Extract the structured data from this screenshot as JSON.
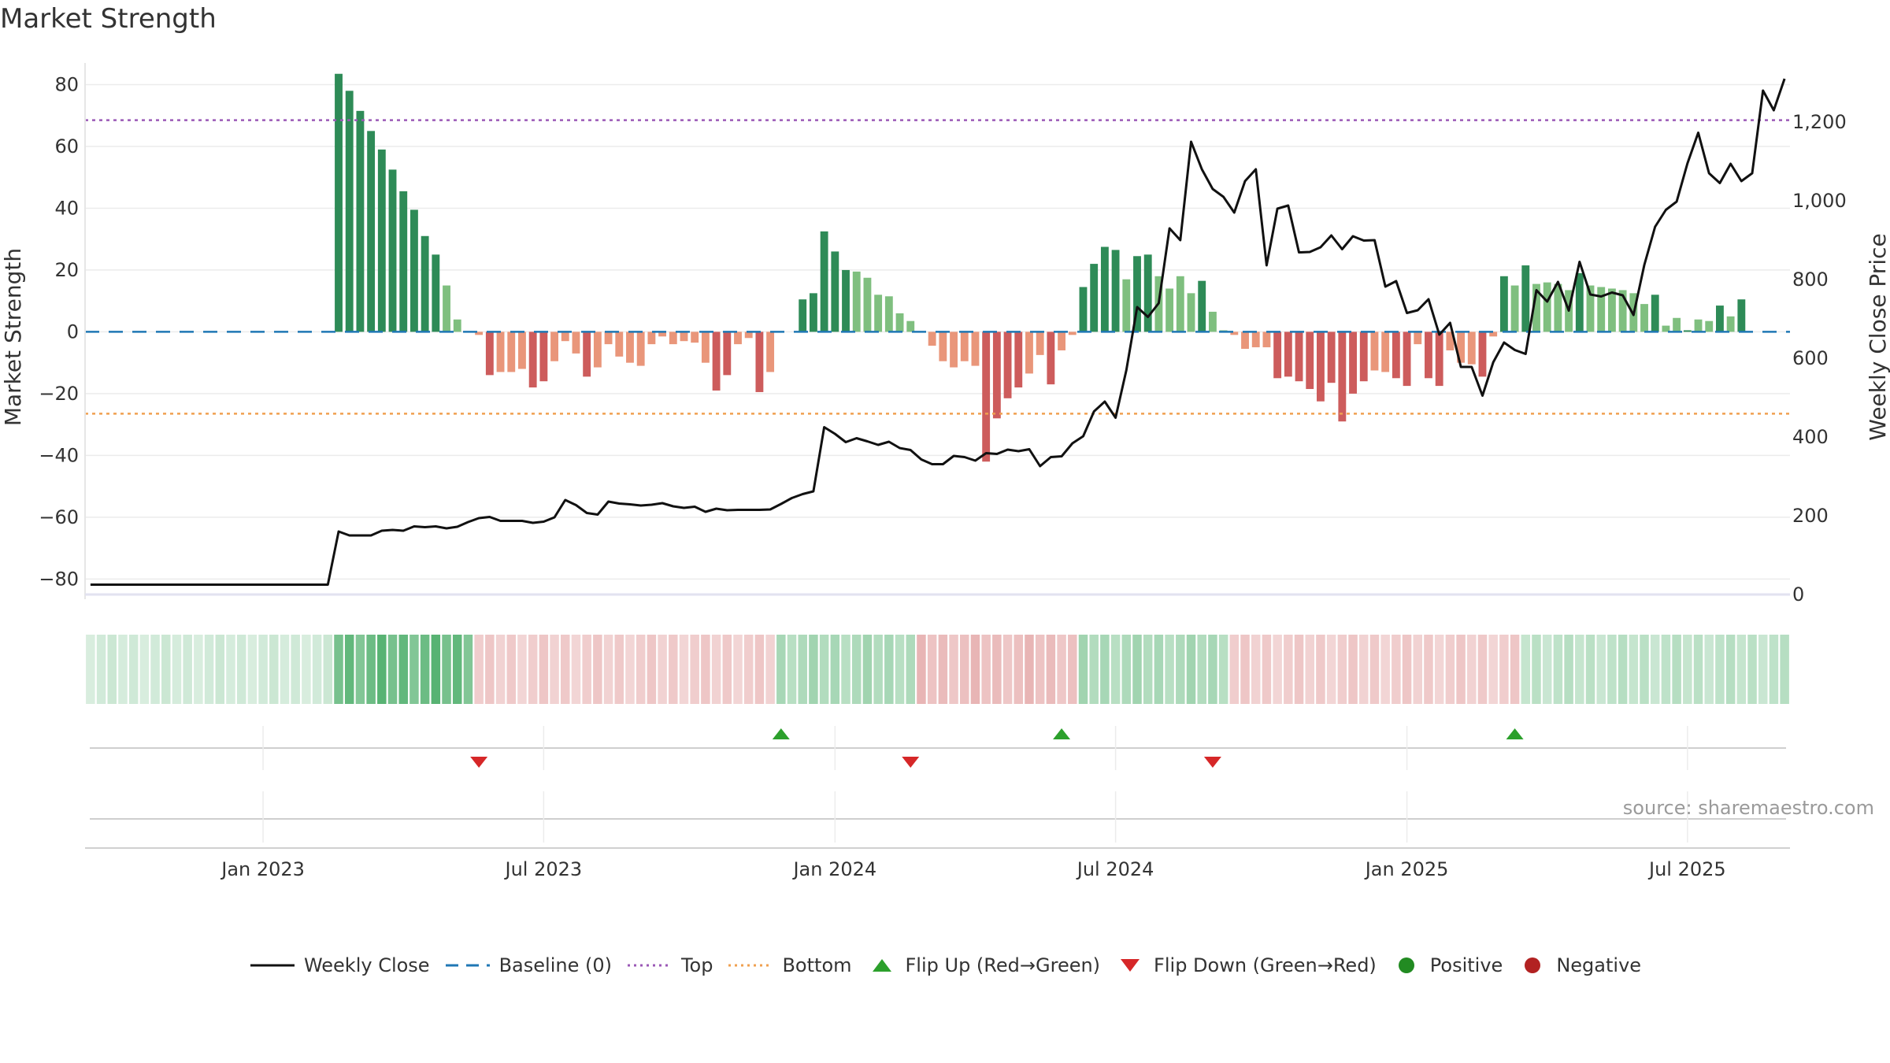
{
  "title": "Market Strength",
  "source": "source: sharemaestro.com",
  "colors": {
    "pos_strong": "#2e8b57",
    "pos_light": "#7fbf7f",
    "neg_strong": "#cd5c5c",
    "neg_light": "#e9967a",
    "line": "#111111",
    "baseline": "#1f77b4",
    "top": "#9b59b6",
    "bottom": "#f0a050",
    "flip_up": "#2ca02c",
    "flip_down": "#d62728",
    "positive": "#228b22",
    "negative": "#b22222"
  },
  "chart_data": {
    "type": "bar",
    "title": "Market Strength",
    "ylabel": "Market Strength",
    "y2label": "Weekly Close Price",
    "ylim": [
      -85,
      87
    ],
    "y_ticks": [
      80,
      60,
      40,
      20,
      0,
      -20,
      -40,
      -60,
      -80
    ],
    "y_tick_labels": [
      "80",
      "60",
      "40",
      "20",
      "0",
      "−20",
      "−40",
      "−60",
      "−80"
    ],
    "y2lim": [
      0,
      1350
    ],
    "y2_ticks": [
      1200,
      1000,
      800,
      600,
      400,
      200,
      0
    ],
    "y2_tick_labels": [
      "1,200",
      "1,000",
      "800",
      "600",
      "400",
      "200",
      "0"
    ],
    "x_ticks": [
      "Jan 2023",
      "Jul 2023",
      "Jan 2024",
      "Jul 2024",
      "Jan 2025",
      "Jul 2025"
    ],
    "x_tick_weeks": [
      16,
      42,
      69,
      95,
      122,
      148
    ],
    "n_weeks": 158,
    "top_line": 68.5,
    "bottom_line": -26.5,
    "bars": [
      {
        "week": 23,
        "value": 83.5
      },
      {
        "week": 24,
        "value": 78
      },
      {
        "week": 25,
        "value": 71.5
      },
      {
        "week": 26,
        "value": 65
      },
      {
        "week": 27,
        "value": 59
      },
      {
        "week": 28,
        "value": 52.5
      },
      {
        "week": 29,
        "value": 45.5
      },
      {
        "week": 30,
        "value": 39.5
      },
      {
        "week": 31,
        "value": 31
      },
      {
        "week": 32,
        "value": 25
      },
      {
        "week": 33,
        "value": 15
      },
      {
        "week": 34,
        "value": 4
      },
      {
        "week": 36,
        "value": -1
      },
      {
        "week": 37,
        "value": -14
      },
      {
        "week": 38,
        "value": -13
      },
      {
        "week": 39,
        "value": -13
      },
      {
        "week": 40,
        "value": -12
      },
      {
        "week": 41,
        "value": -18
      },
      {
        "week": 42,
        "value": -16
      },
      {
        "week": 43,
        "value": -9.5
      },
      {
        "week": 44,
        "value": -3
      },
      {
        "week": 45,
        "value": -7
      },
      {
        "week": 46,
        "value": -14.5
      },
      {
        "week": 47,
        "value": -11.5
      },
      {
        "week": 48,
        "value": -4
      },
      {
        "week": 49,
        "value": -8
      },
      {
        "week": 50,
        "value": -10
      },
      {
        "week": 51,
        "value": -11
      },
      {
        "week": 52,
        "value": -4
      },
      {
        "week": 53,
        "value": -1.5
      },
      {
        "week": 54,
        "value": -4
      },
      {
        "week": 55,
        "value": -3
      },
      {
        "week": 56,
        "value": -3.5
      },
      {
        "week": 57,
        "value": -10
      },
      {
        "week": 58,
        "value": -19
      },
      {
        "week": 59,
        "value": -14
      },
      {
        "week": 60,
        "value": -4
      },
      {
        "week": 61,
        "value": -2
      },
      {
        "week": 62,
        "value": -19.5
      },
      {
        "week": 63,
        "value": -13
      },
      {
        "week": 66,
        "value": 10.5
      },
      {
        "week": 67,
        "value": 12.5
      },
      {
        "week": 68,
        "value": 32.5
      },
      {
        "week": 69,
        "value": 26
      },
      {
        "week": 70,
        "value": 20
      },
      {
        "week": 71,
        "value": 19.5
      },
      {
        "week": 72,
        "value": 17.5
      },
      {
        "week": 73,
        "value": 12
      },
      {
        "week": 74,
        "value": 11.5
      },
      {
        "week": 75,
        "value": 6
      },
      {
        "week": 76,
        "value": 3.5
      },
      {
        "week": 78,
        "value": -4.5
      },
      {
        "week": 79,
        "value": -9.5
      },
      {
        "week": 80,
        "value": -11.5
      },
      {
        "week": 81,
        "value": -9.5
      },
      {
        "week": 82,
        "value": -11
      },
      {
        "week": 83,
        "value": -42
      },
      {
        "week": 84,
        "value": -28
      },
      {
        "week": 85,
        "value": -21.5
      },
      {
        "week": 86,
        "value": -18
      },
      {
        "week": 87,
        "value": -13.5
      },
      {
        "week": 88,
        "value": -7.5
      },
      {
        "week": 89,
        "value": -17
      },
      {
        "week": 90,
        "value": -6
      },
      {
        "week": 91,
        "value": -1
      },
      {
        "week": 92,
        "value": 14.5
      },
      {
        "week": 93,
        "value": 22
      },
      {
        "week": 94,
        "value": 27.5
      },
      {
        "week": 95,
        "value": 26.5
      },
      {
        "week": 96,
        "value": 17
      },
      {
        "week": 97,
        "value": 24.5
      },
      {
        "week": 98,
        "value": 25
      },
      {
        "week": 99,
        "value": 18
      },
      {
        "week": 100,
        "value": 14
      },
      {
        "week": 101,
        "value": 18
      },
      {
        "week": 102,
        "value": 12.5
      },
      {
        "week": 103,
        "value": 16.5
      },
      {
        "week": 104,
        "value": 6.5
      },
      {
        "week": 105,
        "value": 0.5
      },
      {
        "week": 106,
        "value": -1
      },
      {
        "week": 107,
        "value": -5.5
      },
      {
        "week": 108,
        "value": -5
      },
      {
        "week": 109,
        "value": -5
      },
      {
        "week": 110,
        "value": -15
      },
      {
        "week": 111,
        "value": -14.5
      },
      {
        "week": 112,
        "value": -16
      },
      {
        "week": 113,
        "value": -18.5
      },
      {
        "week": 114,
        "value": -22.5
      },
      {
        "week": 115,
        "value": -16.5
      },
      {
        "week": 116,
        "value": -29
      },
      {
        "week": 117,
        "value": -20
      },
      {
        "week": 118,
        "value": -16
      },
      {
        "week": 119,
        "value": -12.5
      },
      {
        "week": 120,
        "value": -13
      },
      {
        "week": 121,
        "value": -15
      },
      {
        "week": 122,
        "value": -17.5
      },
      {
        "week": 123,
        "value": -4
      },
      {
        "week": 124,
        "value": -15
      },
      {
        "week": 125,
        "value": -17.5
      },
      {
        "week": 126,
        "value": -6
      },
      {
        "week": 127,
        "value": -10
      },
      {
        "week": 128,
        "value": -10.5
      },
      {
        "week": 129,
        "value": -14.5
      },
      {
        "week": 130,
        "value": -1.5
      },
      {
        "week": 131,
        "value": 18
      },
      {
        "week": 132,
        "value": 15
      },
      {
        "week": 133,
        "value": 21.5
      },
      {
        "week": 134,
        "value": 15.5
      },
      {
        "week": 135,
        "value": 16
      },
      {
        "week": 136,
        "value": 15.5
      },
      {
        "week": 137,
        "value": 13.5
      },
      {
        "week": 138,
        "value": 19
      },
      {
        "week": 139,
        "value": 15
      },
      {
        "week": 140,
        "value": 14.5
      },
      {
        "week": 141,
        "value": 14
      },
      {
        "week": 142,
        "value": 13.5
      },
      {
        "week": 143,
        "value": 12.5
      },
      {
        "week": 144,
        "value": 9
      },
      {
        "week": 145,
        "value": 12
      },
      {
        "week": 146,
        "value": 2
      },
      {
        "week": 147,
        "value": 4.5
      },
      {
        "week": 148,
        "value": 0.5
      },
      {
        "week": 149,
        "value": 4
      },
      {
        "week": 150,
        "value": 3.5
      },
      {
        "week": 151,
        "value": 8.5
      },
      {
        "week": 152,
        "value": 5
      },
      {
        "week": 153,
        "value": 10.5
      }
    ],
    "close_series": [
      {
        "week": 0,
        "close": 25
      },
      {
        "week": 22,
        "close": 25
      },
      {
        "week": 23,
        "close": 160
      },
      {
        "week": 24,
        "close": 150
      },
      {
        "week": 25,
        "close": 150
      },
      {
        "week": 26,
        "close": 150
      },
      {
        "week": 27,
        "close": 162
      },
      {
        "week": 28,
        "close": 164
      },
      {
        "week": 29,
        "close": 162
      },
      {
        "week": 30,
        "close": 173
      },
      {
        "week": 31,
        "close": 171
      },
      {
        "week": 32,
        "close": 173
      },
      {
        "week": 33,
        "close": 168
      },
      {
        "week": 34,
        "close": 172
      },
      {
        "week": 35,
        "close": 184
      },
      {
        "week": 36,
        "close": 194
      },
      {
        "week": 37,
        "close": 197
      },
      {
        "week": 38,
        "close": 187
      },
      {
        "week": 39,
        "close": 187
      },
      {
        "week": 40,
        "close": 187
      },
      {
        "week": 41,
        "close": 182
      },
      {
        "week": 42,
        "close": 185
      },
      {
        "week": 43,
        "close": 196
      },
      {
        "week": 44,
        "close": 240
      },
      {
        "week": 45,
        "close": 227
      },
      {
        "week": 46,
        "close": 207
      },
      {
        "week": 47,
        "close": 203
      },
      {
        "week": 48,
        "close": 236
      },
      {
        "week": 49,
        "close": 231
      },
      {
        "week": 50,
        "close": 229
      },
      {
        "week": 51,
        "close": 226
      },
      {
        "week": 52,
        "close": 228
      },
      {
        "week": 53,
        "close": 232
      },
      {
        "week": 54,
        "close": 224
      },
      {
        "week": 55,
        "close": 220
      },
      {
        "week": 56,
        "close": 223
      },
      {
        "week": 57,
        "close": 210
      },
      {
        "week": 58,
        "close": 218
      },
      {
        "week": 59,
        "close": 214
      },
      {
        "week": 60,
        "close": 215
      },
      {
        "week": 61,
        "close": 215
      },
      {
        "week": 62,
        "close": 215
      },
      {
        "week": 63,
        "close": 216
      },
      {
        "week": 64,
        "close": 230
      },
      {
        "week": 65,
        "close": 245
      },
      {
        "week": 66,
        "close": 255
      },
      {
        "week": 67,
        "close": 262
      },
      {
        "week": 68,
        "close": 425
      },
      {
        "week": 69,
        "close": 408
      },
      {
        "week": 70,
        "close": 387
      },
      {
        "week": 71,
        "close": 397
      },
      {
        "week": 72,
        "close": 389
      },
      {
        "week": 73,
        "close": 380
      },
      {
        "week": 74,
        "close": 388
      },
      {
        "week": 75,
        "close": 372
      },
      {
        "week": 76,
        "close": 367
      },
      {
        "week": 77,
        "close": 343
      },
      {
        "week": 78,
        "close": 331
      },
      {
        "week": 79,
        "close": 331
      },
      {
        "week": 80,
        "close": 352
      },
      {
        "week": 81,
        "close": 349
      },
      {
        "week": 82,
        "close": 340
      },
      {
        "week": 83,
        "close": 359
      },
      {
        "week": 84,
        "close": 357
      },
      {
        "week": 85,
        "close": 368
      },
      {
        "week": 86,
        "close": 364
      },
      {
        "week": 87,
        "close": 369
      },
      {
        "week": 88,
        "close": 326
      },
      {
        "week": 89,
        "close": 349
      },
      {
        "week": 90,
        "close": 351
      },
      {
        "week": 91,
        "close": 384
      },
      {
        "week": 92,
        "close": 402
      },
      {
        "week": 93,
        "close": 465
      },
      {
        "week": 94,
        "close": 490
      },
      {
        "week": 95,
        "close": 449
      },
      {
        "week": 96,
        "close": 570
      },
      {
        "week": 97,
        "close": 730
      },
      {
        "week": 98,
        "close": 705
      },
      {
        "week": 99,
        "close": 740
      },
      {
        "week": 100,
        "close": 930
      },
      {
        "week": 101,
        "close": 900
      },
      {
        "week": 102,
        "close": 1150
      },
      {
        "week": 103,
        "close": 1080
      },
      {
        "week": 104,
        "close": 1030
      },
      {
        "week": 105,
        "close": 1010
      },
      {
        "week": 106,
        "close": 970
      },
      {
        "week": 107,
        "close": 1050
      },
      {
        "week": 108,
        "close": 1080
      },
      {
        "week": 109,
        "close": 836
      },
      {
        "week": 110,
        "close": 980
      },
      {
        "week": 111,
        "close": 988
      },
      {
        "week": 112,
        "close": 869
      },
      {
        "week": 113,
        "close": 870
      },
      {
        "week": 114,
        "close": 882
      },
      {
        "week": 115,
        "close": 912
      },
      {
        "week": 116,
        "close": 877
      },
      {
        "week": 117,
        "close": 910
      },
      {
        "week": 118,
        "close": 899
      },
      {
        "week": 119,
        "close": 900
      },
      {
        "week": 120,
        "close": 782
      },
      {
        "week": 121,
        "close": 796
      },
      {
        "week": 122,
        "close": 715
      },
      {
        "week": 123,
        "close": 722
      },
      {
        "week": 124,
        "close": 750
      },
      {
        "week": 125,
        "close": 660
      },
      {
        "week": 126,
        "close": 690
      },
      {
        "week": 127,
        "close": 578
      },
      {
        "week": 128,
        "close": 578
      },
      {
        "week": 129,
        "close": 505
      },
      {
        "week": 130,
        "close": 590
      },
      {
        "week": 131,
        "close": 640
      },
      {
        "week": 132,
        "close": 621
      },
      {
        "week": 133,
        "close": 611
      },
      {
        "week": 134,
        "close": 773
      },
      {
        "week": 135,
        "close": 744
      },
      {
        "week": 136,
        "close": 794
      },
      {
        "week": 137,
        "close": 721
      },
      {
        "week": 138,
        "close": 845
      },
      {
        "week": 139,
        "close": 762
      },
      {
        "week": 140,
        "close": 757
      },
      {
        "week": 141,
        "close": 767
      },
      {
        "week": 142,
        "close": 760
      },
      {
        "week": 143,
        "close": 710
      },
      {
        "week": 144,
        "close": 837
      },
      {
        "week": 145,
        "close": 934
      },
      {
        "week": 146,
        "close": 977
      },
      {
        "week": 147,
        "close": 998
      },
      {
        "week": 148,
        "close": 1095
      },
      {
        "week": 149,
        "close": 1173
      },
      {
        "week": 150,
        "close": 1070
      },
      {
        "week": 151,
        "close": 1045
      },
      {
        "week": 152,
        "close": 1094
      },
      {
        "week": 153,
        "close": 1050
      },
      {
        "week": 154,
        "close": 1070
      },
      {
        "week": 155,
        "close": 1280
      },
      {
        "week": 156,
        "close": 1230
      },
      {
        "week": 157,
        "close": 1310
      }
    ],
    "regime_bands": [
      {
        "start": 0,
        "end": 22,
        "regime": "positive",
        "intensity": 0.25
      },
      {
        "start": 23,
        "end": 35,
        "regime": "positive",
        "intensity": 0.8
      },
      {
        "start": 36,
        "end": 63,
        "regime": "negative",
        "intensity": 0.35
      },
      {
        "start": 64,
        "end": 76,
        "regime": "positive",
        "intensity": 0.45
      },
      {
        "start": 77,
        "end": 91,
        "regime": "negative",
        "intensity": 0.45
      },
      {
        "start": 92,
        "end": 105,
        "regime": "positive",
        "intensity": 0.45
      },
      {
        "start": 106,
        "end": 132,
        "regime": "negative",
        "intensity": 0.35
      },
      {
        "start": 133,
        "end": 157,
        "regime": "positive",
        "intensity": 0.35
      }
    ],
    "flips_up": [
      64,
      90,
      132
    ],
    "flips_down": [
      36,
      76,
      104
    ],
    "legend": [
      {
        "label": "Weekly Close",
        "symbol": "line"
      },
      {
        "label": "Baseline (0)",
        "symbol": "dash"
      },
      {
        "label": "Top",
        "symbol": "dot-purple"
      },
      {
        "label": "Bottom",
        "symbol": "dot-orange"
      },
      {
        "label": "Flip Up (Red→Green)",
        "symbol": "triangle-up"
      },
      {
        "label": "Flip Down (Green→Red)",
        "symbol": "triangle-down"
      },
      {
        "label": "Positive",
        "symbol": "circle-green"
      },
      {
        "label": "Negative",
        "symbol": "circle-red"
      }
    ]
  }
}
